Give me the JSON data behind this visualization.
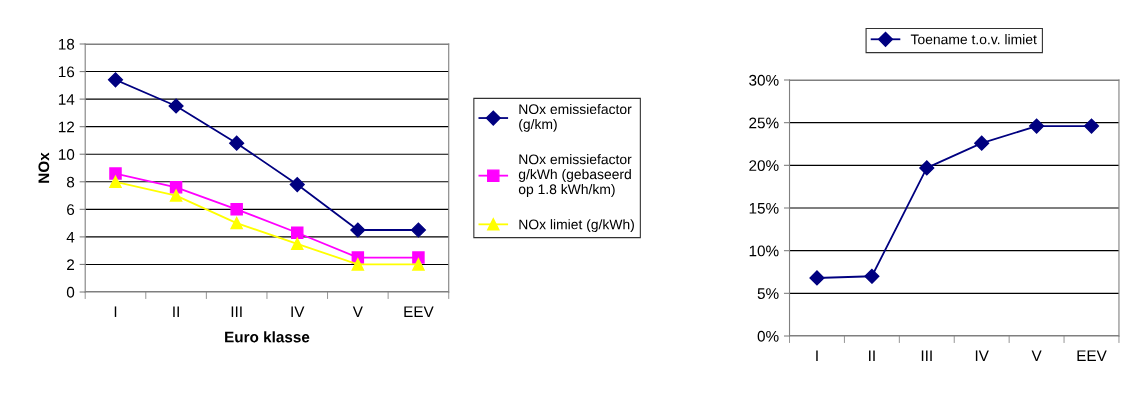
{
  "chart_data": [
    {
      "type": "line",
      "xlabel": "Euro klasse",
      "ylabel": "NOx",
      "categories": [
        "I",
        "II",
        "III",
        "IV",
        "V",
        "EEV"
      ],
      "ylim": [
        0,
        18
      ],
      "yticks": [
        0,
        2,
        4,
        6,
        8,
        10,
        12,
        14,
        16,
        18
      ],
      "grid": "y",
      "legend": "right",
      "series": [
        {
          "name": "NOx emissiefactor (g/km)",
          "color": "#000080",
          "marker": "diamond",
          "values": [
            15.4,
            13.5,
            10.8,
            7.8,
            4.5,
            4.5
          ]
        },
        {
          "name": "NOx emissiefactor g/kWh (gebaseerd op 1.8 kWh/km)",
          "color": "#ff00ff",
          "marker": "square",
          "values": [
            8.6,
            7.6,
            6.0,
            4.3,
            2.5,
            2.5
          ]
        },
        {
          "name": "NOx limiet (g/kWh)",
          "color": "#ffff00",
          "marker": "triangle",
          "values": [
            8,
            7,
            5,
            3.5,
            2,
            2
          ]
        }
      ]
    },
    {
      "type": "line",
      "categories": [
        "I",
        "II",
        "III",
        "IV",
        "V",
        "EEV"
      ],
      "ylim": [
        0,
        30
      ],
      "yticks": [
        {
          "value": 0,
          "label": "0%"
        },
        {
          "value": 5,
          "label": "5%"
        },
        {
          "value": 10,
          "label": "10%"
        },
        {
          "value": 15,
          "label": "15%"
        },
        {
          "value": 20,
          "label": "20%"
        },
        {
          "value": 25,
          "label": "25%"
        },
        {
          "value": 30,
          "label": "30%"
        }
      ],
      "grid": "y",
      "legend": "top",
      "series": [
        {
          "name": "Toename t.o.v. limiet",
          "color": "#000080",
          "marker": "diamond",
          "values": [
            6.8,
            7.0,
            19.7,
            22.6,
            24.6,
            24.6
          ]
        }
      ]
    }
  ]
}
